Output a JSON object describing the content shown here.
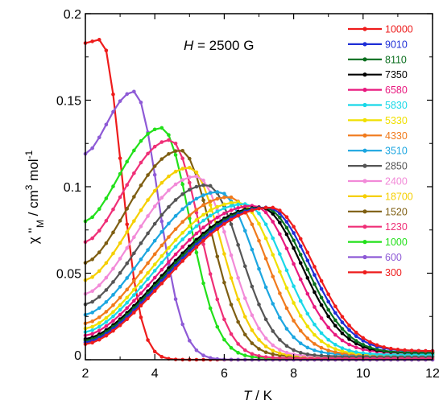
{
  "chart_data": {
    "type": "line",
    "annotation": {
      "var": "H",
      "text": " = 2500 G"
    },
    "xlabel": {
      "var": "T",
      "text": " / K"
    },
    "ylabel": {
      "chi": "χ",
      "prime": " ''",
      "sub": "M",
      "unit": " / cm",
      "sup1": "3",
      "mol": " mol",
      "sup2": "-1"
    },
    "xlim": [
      2,
      12
    ],
    "ylim": [
      0,
      0.2
    ],
    "xticks": [
      "2",
      "4",
      "6",
      "8",
      "10",
      "12"
    ],
    "yticks": [
      "0",
      "0.05",
      "0.1",
      "0.15",
      "0.2"
    ],
    "legend_position": "right",
    "series": [
      {
        "name": "10000",
        "color": "#ee1c1c",
        "peak_x": 7.35,
        "peak_y": 0.088,
        "left_y": 0.009,
        "right_y": 0.005
      },
      {
        "name": "9010",
        "color": "#1f2fd6",
        "peak_x": 7.25,
        "peak_y": 0.088,
        "left_y": 0.01,
        "right_y": 0.005
      },
      {
        "name": "8110",
        "color": "#0a6e1e",
        "peak_x": 7.15,
        "peak_y": 0.088,
        "left_y": 0.011,
        "right_y": 0.004
      },
      {
        "name": "7350",
        "color": "#000000",
        "peak_x": 7.05,
        "peak_y": 0.088,
        "left_y": 0.012,
        "right_y": 0.004
      },
      {
        "name": "6580",
        "color": "#e8197f",
        "peak_x": 6.85,
        "peak_y": 0.089,
        "left_y": 0.014,
        "right_y": 0.004
      },
      {
        "name": "5830",
        "color": "#19d8e8",
        "peak_x": 6.6,
        "peak_y": 0.09,
        "left_y": 0.016,
        "right_y": 0.003
      },
      {
        "name": "5330",
        "color": "#f0e000",
        "peak_x": 6.4,
        "peak_y": 0.091,
        "left_y": 0.018,
        "right_y": 0.003
      },
      {
        "name": "4330",
        "color": "#f07a1c",
        "peak_x": 6.15,
        "peak_y": 0.094,
        "left_y": 0.021,
        "right_y": 0.003
      },
      {
        "name": "3510",
        "color": "#1ca6e0",
        "peak_x": 5.85,
        "peak_y": 0.097,
        "left_y": 0.026,
        "right_y": 0.003
      },
      {
        "name": "2850",
        "color": "#555555",
        "peak_x": 5.5,
        "peak_y": 0.101,
        "left_y": 0.032,
        "right_y": 0.002
      },
      {
        "name": "2400",
        "color": "#f28ad8",
        "peak_x": 5.2,
        "peak_y": 0.106,
        "left_y": 0.038,
        "right_y": 0.002
      },
      {
        "name": "18700",
        "color": "#f5cf00",
        "peak_x": 5.0,
        "peak_y": 0.111,
        "left_y": 0.046,
        "right_y": 0.002
      },
      {
        "name": "1520",
        "color": "#7e5e12",
        "peak_x": 4.75,
        "peak_y": 0.121,
        "left_y": 0.056,
        "right_y": 0.002
      },
      {
        "name": "1230",
        "color": "#ef2f77",
        "peak_x": 4.45,
        "peak_y": 0.127,
        "left_y": 0.068,
        "right_y": 0.001
      },
      {
        "name": "1000",
        "color": "#22e01a",
        "peak_x": 4.2,
        "peak_y": 0.134,
        "left_y": 0.08,
        "right_y": 0.001
      },
      {
        "name": "600",
        "color": "#8e5ad6",
        "peak_x": 3.4,
        "peak_y": 0.155,
        "left_y": 0.119,
        "right_y": 0.0
      },
      {
        "name": "300",
        "color": "#ee1c1c",
        "peak_x": 2.45,
        "peak_y": 0.185,
        "left_y": 0.183,
        "right_y": 0.0
      }
    ]
  }
}
